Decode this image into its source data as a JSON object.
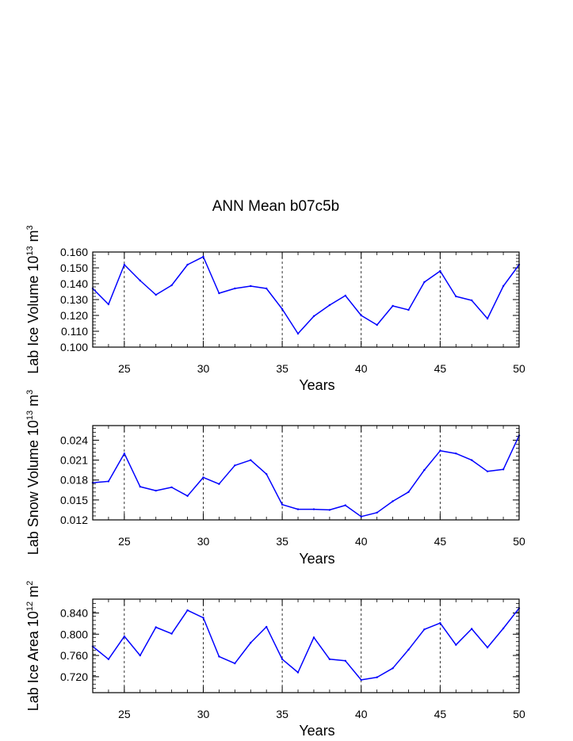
{
  "title": "ANN Mean b07c5b",
  "colors": {
    "series": "#0000ff",
    "axes": "#000000"
  },
  "chart_data": [
    {
      "type": "line",
      "ylabel": {
        "text": "Lab Ice Volume 10",
        "exp": "13",
        "unit": " m",
        "unit_exp": "3"
      },
      "xlabel": "Years",
      "xlim": [
        23,
        50
      ],
      "xticks": [
        25,
        30,
        35,
        40,
        45,
        50
      ],
      "ylim": [
        0.1,
        0.16
      ],
      "yticks": [
        "0.100",
        "0.110",
        "0.120",
        "0.130",
        "0.140",
        "0.150",
        "0.160"
      ],
      "yminor_step": 0.002,
      "grid_x": [
        25,
        30,
        35,
        40,
        45
      ],
      "x": [
        23,
        24,
        25,
        26,
        27,
        28,
        29,
        30,
        31,
        32,
        33,
        34,
        35,
        36,
        37,
        38,
        39,
        40,
        41,
        42,
        43,
        44,
        45,
        46,
        47,
        48,
        49,
        50
      ],
      "values": [
        0.137,
        0.127,
        0.152,
        0.142,
        0.133,
        0.139,
        0.152,
        0.157,
        0.134,
        0.137,
        0.1385,
        0.137,
        0.124,
        0.1085,
        0.1195,
        0.1265,
        0.1325,
        0.12,
        0.114,
        0.126,
        0.1235,
        0.141,
        0.148,
        0.132,
        0.1295,
        0.118,
        0.1385,
        0.152
      ]
    },
    {
      "type": "line",
      "ylabel": {
        "text": "Lab Snow Volume 10",
        "exp": "13",
        "unit": " m",
        "unit_exp": "3"
      },
      "xlabel": "Years",
      "xlim": [
        23,
        50
      ],
      "xticks": [
        25,
        30,
        35,
        40,
        45,
        50
      ],
      "ylim": [
        0.012,
        0.0262
      ],
      "yticks": [
        "0.012",
        "0.015",
        "0.018",
        "0.021",
        "0.024"
      ],
      "yminor_step": 0.0006,
      "grid_x": [
        25,
        30,
        35,
        40,
        45
      ],
      "x": [
        23,
        24,
        25,
        26,
        27,
        28,
        29,
        30,
        31,
        32,
        33,
        34,
        35,
        36,
        37,
        38,
        39,
        40,
        41,
        42,
        43,
        44,
        45,
        46,
        47,
        48,
        49,
        50
      ],
      "values": [
        0.0176,
        0.0178,
        0.022,
        0.017,
        0.0164,
        0.0169,
        0.0156,
        0.0184,
        0.0174,
        0.0202,
        0.021,
        0.0189,
        0.0143,
        0.0136,
        0.0136,
        0.0135,
        0.0142,
        0.0125,
        0.0131,
        0.0148,
        0.0162,
        0.0195,
        0.0224,
        0.022,
        0.021,
        0.0193,
        0.0196,
        0.0247
      ]
    },
    {
      "type": "line",
      "ylabel": {
        "text": "Lab Ice Area 10",
        "exp": "12",
        "unit": " m",
        "unit_exp": "2"
      },
      "xlabel": "Years",
      "xlim": [
        23,
        50
      ],
      "xticks": [
        25,
        30,
        35,
        40,
        45,
        50
      ],
      "ylim": [
        0.69,
        0.866
      ],
      "yticks": [
        "0.720",
        "0.760",
        "0.800",
        "0.840"
      ],
      "yminor_step": 0.008,
      "grid_x": [
        25,
        30,
        35,
        40,
        45
      ],
      "x": [
        23,
        24,
        25,
        26,
        27,
        28,
        29,
        30,
        31,
        32,
        33,
        34,
        35,
        36,
        37,
        38,
        39,
        40,
        41,
        42,
        43,
        44,
        45,
        46,
        47,
        48,
        49,
        50
      ],
      "values": [
        0.777,
        0.753,
        0.796,
        0.76,
        0.813,
        0.801,
        0.845,
        0.831,
        0.758,
        0.745,
        0.784,
        0.814,
        0.753,
        0.728,
        0.794,
        0.753,
        0.75,
        0.714,
        0.719,
        0.736,
        0.771,
        0.809,
        0.821,
        0.78,
        0.81,
        0.775,
        0.811,
        0.849
      ]
    }
  ]
}
